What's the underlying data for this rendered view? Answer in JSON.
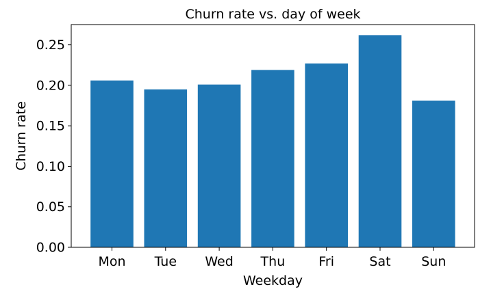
{
  "chart_data": {
    "type": "bar",
    "title": "Churn rate vs. day of week",
    "xlabel": "Weekday",
    "ylabel": "Churn rate",
    "categories": [
      "Mon",
      "Tue",
      "Wed",
      "Thu",
      "Fri",
      "Sat",
      "Sun"
    ],
    "values": [
      0.206,
      0.195,
      0.201,
      0.219,
      0.227,
      0.262,
      0.181
    ],
    "ylim": [
      0,
      0.275
    ],
    "yticks": [
      "0.00",
      "0.05",
      "0.10",
      "0.15",
      "0.20",
      "0.25"
    ],
    "grid": false,
    "bar_color": "#1f77b4"
  }
}
